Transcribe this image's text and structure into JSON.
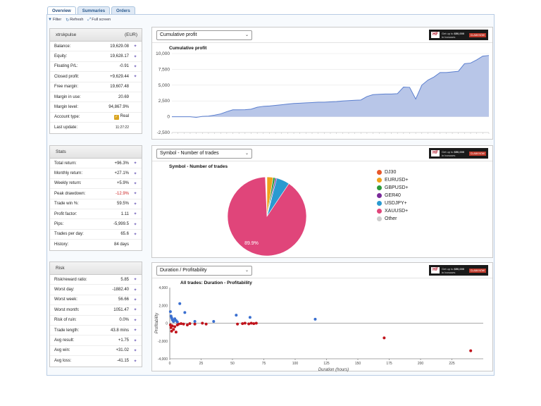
{
  "tabs": [
    {
      "label": "Overview",
      "active": true
    },
    {
      "label": "Summaries",
      "active": false
    },
    {
      "label": "Orders",
      "active": false
    }
  ],
  "toolbar": {
    "filter": "Filter",
    "refresh": "Refresh",
    "fullscreen": "Full screen"
  },
  "account": {
    "name": "xtrskpulse",
    "currency": "(EUR)",
    "rows": [
      {
        "label": "Balance:",
        "value": "19,629.08"
      },
      {
        "label": "Equity:",
        "value": "19,628.17"
      },
      {
        "label": "Floating P/L:",
        "value": "-0.91"
      },
      {
        "label": "Closed profit:",
        "value": "+9,629.44"
      },
      {
        "label": "Free margin:",
        "value": "19,607.48"
      },
      {
        "label": "Margin in use:",
        "value": "20.69"
      },
      {
        "label": "Margin level:",
        "value": "94,867.9%"
      },
      {
        "label": "Account type:",
        "value": "Real"
      },
      {
        "label": "Last update:",
        "value": "11:27:22"
      }
    ]
  },
  "stats": {
    "title": "Stats",
    "rows": [
      {
        "label": "Total return:",
        "value": "+96.3%"
      },
      {
        "label": "Monthly return:",
        "value": "+27.1%"
      },
      {
        "label": "Weekly return:",
        "value": "+5.9%"
      },
      {
        "label": "Peak drawdown:",
        "value": "-12.9%"
      },
      {
        "label": "Trade win %:",
        "value": "59.5%"
      },
      {
        "label": "Profit factor:",
        "value": "1.11"
      },
      {
        "label": "Pips:",
        "value": "-5,999.5"
      },
      {
        "label": "Trades per day:",
        "value": "65.6"
      },
      {
        "label": "History:",
        "value": "84 days"
      }
    ]
  },
  "risk": {
    "title": "Risk",
    "rows": [
      {
        "label": "Risk/reward ratio:",
        "value": "5.85"
      },
      {
        "label": "Worst day:",
        "value": "-1882.40"
      },
      {
        "label": "Worst week:",
        "value": "56.66"
      },
      {
        "label": "Worst month:",
        "value": "1051.47"
      },
      {
        "label": "Risk of ruin:",
        "value": "0.0%"
      },
      {
        "label": "Trade length:",
        "value": "43.8 mins"
      },
      {
        "label": "Avg result:",
        "value": "+1.75"
      },
      {
        "label": "Avg win:",
        "value": "+31.02"
      },
      {
        "label": "Avg loss:",
        "value": "-41.15"
      }
    ]
  },
  "ad": {
    "logo": "HF",
    "text1": "Get up to",
    "text2": "$50,000",
    "text3": "in bonuses",
    "cta": "CLAIM NOW"
  },
  "charts": {
    "cumulative": {
      "select_label": "Cumulative profit",
      "title": "Cumulative profit"
    },
    "symbol": {
      "select_label": "Symbol - Number of trades",
      "title": "Symbol - Number of trades"
    },
    "duration": {
      "select_label": "Duration / Profitability",
      "title": "All trades: Duration - Profitability"
    }
  },
  "colors": {
    "area_fill": "#b8c6e8",
    "area_line": "#5b7fcf",
    "win": "#3a6fd0",
    "loss": "#c0141c"
  },
  "chart_data": [
    {
      "type": "area",
      "title": "Cumulative profit",
      "ylim": [
        -2500,
        10000
      ],
      "yticks": [
        10000,
        7500,
        5000,
        2500,
        0,
        -2500
      ],
      "ytick_labels": [
        "10,000",
        "7,500",
        "5,000",
        "2,500",
        "0",
        "-2,500"
      ],
      "grid": true,
      "values": [
        0,
        0,
        0,
        0,
        -100,
        50,
        100,
        250,
        450,
        800,
        1100,
        1100,
        1120,
        1200,
        1500,
        1650,
        1700,
        1800,
        1900,
        2000,
        2100,
        2150,
        2200,
        2250,
        2300,
        2300,
        2350,
        2400,
        2500,
        2550,
        2600,
        2650,
        3200,
        3500,
        3550,
        3600,
        3600,
        3650,
        4700,
        4650,
        2800,
        5000,
        5800,
        6300,
        7000,
        7000,
        7100,
        7200,
        8400,
        8500,
        9000,
        9600,
        9700
      ]
    },
    {
      "type": "pie",
      "title": "Symbol - Number of trades",
      "legend_position": "right",
      "slices": [
        {
          "label": "DJ30",
          "value": 0.2,
          "color": "#e8572a"
        },
        {
          "label": "EURUSD+",
          "value": 2.5,
          "color": "#f0a21b"
        },
        {
          "label": "GBPUSD+",
          "value": 0.9,
          "color": "#2a9a3a"
        },
        {
          "label": "GER40",
          "value": 0.6,
          "color": "#7a2a9a"
        },
        {
          "label": "USDJPY+",
          "value": 5.4,
          "color": "#2a9ad0"
        },
        {
          "label": "XAUUSD+",
          "value": 89.9,
          "color": "#e0457a"
        },
        {
          "label": "Other",
          "value": 0.5,
          "color": "#cccccc"
        }
      ],
      "data_labels": [
        {
          "slice": "XAUUSD+",
          "text": "89.9%"
        }
      ]
    },
    {
      "type": "scatter",
      "title": "All trades: Duration - Profitability",
      "xlabel": "Duration (hours)",
      "ylabel": "Profitability",
      "xlim": [
        0,
        250
      ],
      "ylim": [
        -4000,
        4000
      ],
      "xticks": [
        0,
        25,
        50,
        75,
        100,
        125,
        150,
        175,
        200,
        225
      ],
      "yticks": [
        4000,
        2000,
        0,
        -2000,
        -4000
      ],
      "ytick_labels": [
        "4,000",
        "2,000",
        "0",
        "-2,000",
        "-4,000"
      ],
      "wins": [
        [
          0.5,
          1300
        ],
        [
          1,
          800
        ],
        [
          1.5,
          600
        ],
        [
          2,
          400
        ],
        [
          2.5,
          300
        ],
        [
          3,
          200
        ],
        [
          4,
          500
        ],
        [
          5,
          300
        ],
        [
          6,
          150
        ],
        [
          8,
          2200
        ],
        [
          12,
          1200
        ],
        [
          20,
          200
        ],
        [
          35,
          200
        ],
        [
          53,
          900
        ],
        [
          64,
          650
        ],
        [
          116,
          450
        ]
      ],
      "losses": [
        [
          0.5,
          -200
        ],
        [
          1,
          -500
        ],
        [
          1.5,
          -900
        ],
        [
          2,
          -300
        ],
        [
          3,
          -700
        ],
        [
          4,
          -400
        ],
        [
          5,
          -1000
        ],
        [
          6,
          -200
        ],
        [
          7,
          -100
        ],
        [
          9,
          -50
        ],
        [
          11,
          -100
        ],
        [
          14,
          -200
        ],
        [
          16,
          -50
        ],
        [
          20,
          -100
        ],
        [
          26,
          0
        ],
        [
          29,
          -100
        ],
        [
          54,
          -100
        ],
        [
          58,
          -50
        ],
        [
          60,
          0
        ],
        [
          63,
          -80
        ],
        [
          65,
          0
        ],
        [
          67,
          -50
        ],
        [
          69,
          0
        ],
        [
          171,
          -1650
        ],
        [
          240,
          -3100
        ]
      ]
    }
  ]
}
